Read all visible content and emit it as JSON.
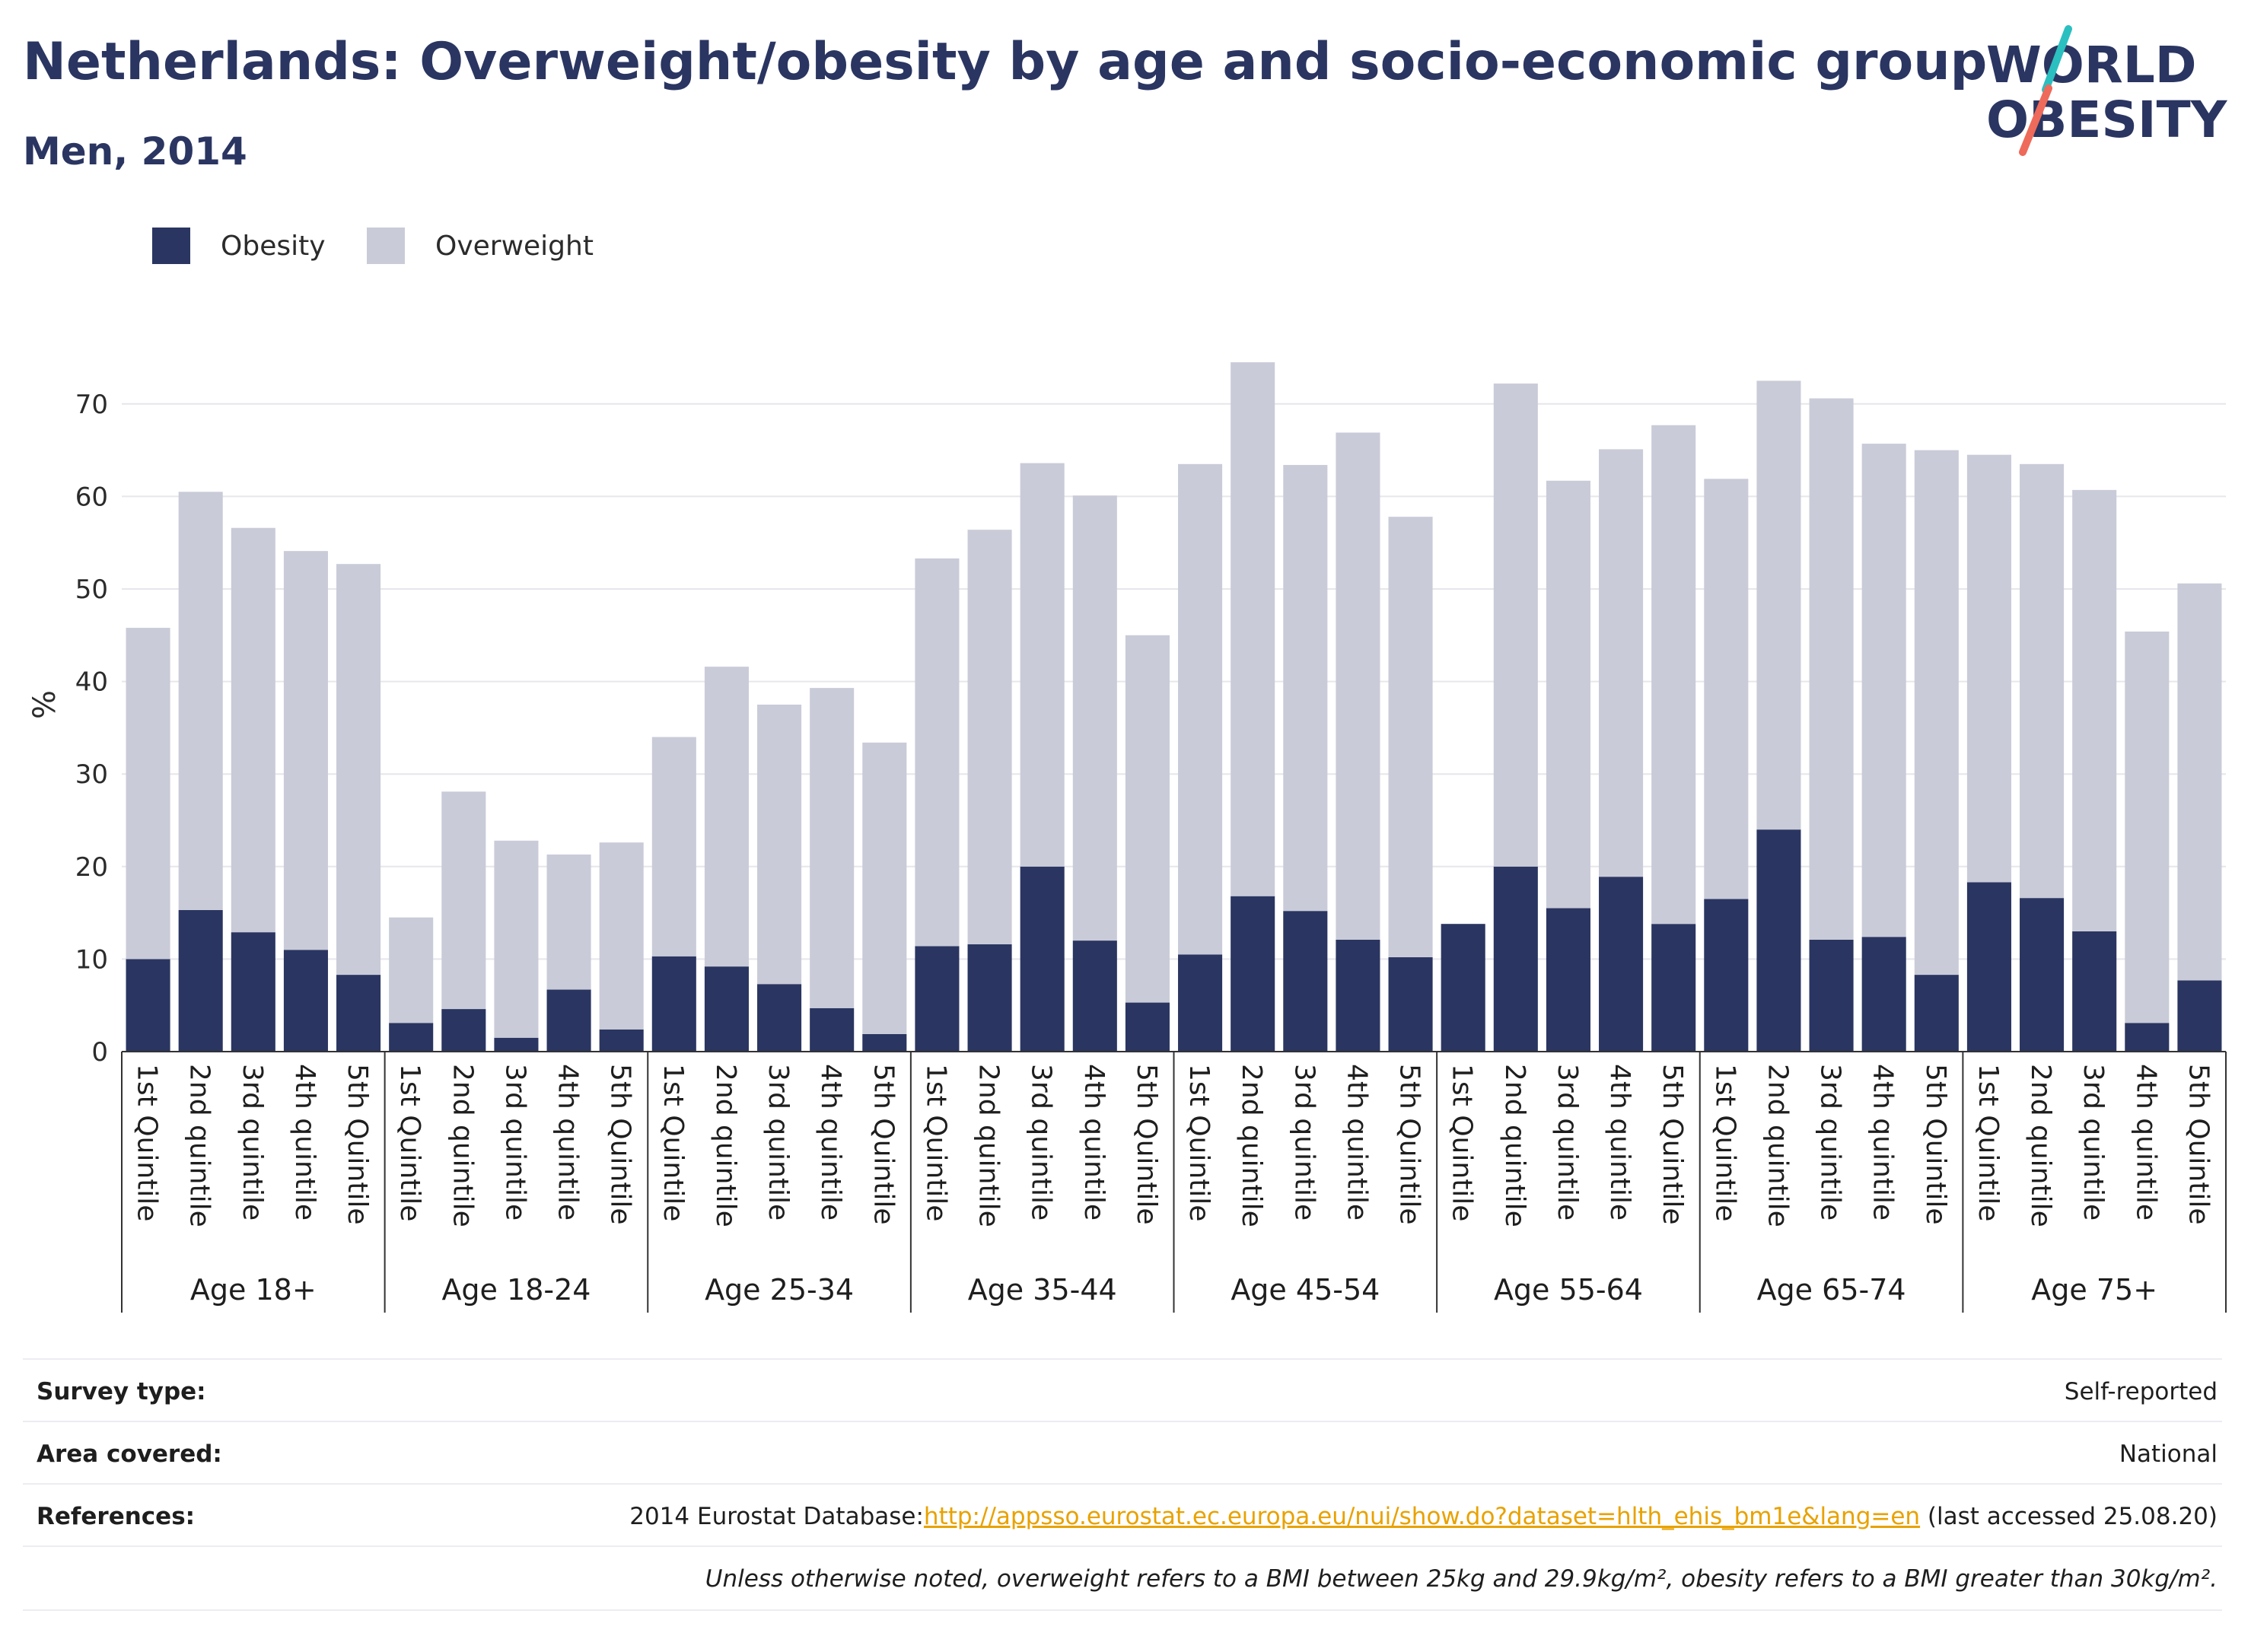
{
  "title": "Netherlands: Overweight/obesity by age and socio-economic group",
  "subtitle": "Men, 2014",
  "logo": {
    "line1": "WORLD",
    "line2": "OBESITY",
    "accent_teal": "#2bbfc0",
    "accent_coral": "#ee6a5a"
  },
  "colors": {
    "obesity": "#2a3561",
    "overweight": "#c9cbd8",
    "grid": "#e6e6ec",
    "axis": "#333333"
  },
  "chart_data": {
    "type": "bar",
    "stacked": true,
    "ylabel": "%",
    "ylim": [
      0,
      75
    ],
    "yticks": [
      0,
      10,
      20,
      30,
      40,
      50,
      60,
      70
    ],
    "grid": true,
    "legend_position": "top-left",
    "groups": [
      "Age 18+",
      "Age 18-24",
      "Age 25-34",
      "Age 35-44",
      "Age 45-54",
      "Age 55-64",
      "Age 65-74",
      "Age 75+"
    ],
    "categories": [
      "1st Quintile",
      "2nd quintile",
      "3rd quintile",
      "4th quintile",
      "5th Quintile"
    ],
    "series": [
      {
        "name": "Obesity",
        "values": [
          [
            10.0,
            15.3,
            12.9,
            11.0,
            8.3
          ],
          [
            3.1,
            4.6,
            1.5,
            6.7,
            2.4
          ],
          [
            10.3,
            9.2,
            7.3,
            4.7,
            1.9
          ],
          [
            11.4,
            11.6,
            20.0,
            12.0,
            5.3
          ],
          [
            10.5,
            16.8,
            15.2,
            12.1,
            10.2
          ],
          [
            13.8,
            20.0,
            15.5,
            18.9,
            13.8
          ],
          [
            16.5,
            24.0,
            12.1,
            12.4,
            8.3
          ],
          [
            18.3,
            16.6,
            13.0,
            3.1,
            7.7
          ]
        ]
      },
      {
        "name": "Overweight",
        "values": [
          [
            35.8,
            45.2,
            43.7,
            43.1,
            44.4
          ],
          [
            11.4,
            23.5,
            21.3,
            14.6,
            20.2
          ],
          [
            23.7,
            32.4,
            30.2,
            34.6,
            31.5
          ],
          [
            41.9,
            44.8,
            43.6,
            48.1,
            39.7
          ],
          [
            53.0,
            57.7,
            48.2,
            54.8,
            47.6
          ],
          [
            0.0,
            52.2,
            46.2,
            46.2,
            53.9
          ],
          [
            45.4,
            48.5,
            58.5,
            53.3,
            56.7
          ],
          [
            46.2,
            46.9,
            47.7,
            42.3,
            42.9
          ]
        ]
      }
    ]
  },
  "info": {
    "survey_type": {
      "label": "Survey type:",
      "value": "Self-reported"
    },
    "area_covered": {
      "label": "Area covered:",
      "value": "National"
    },
    "references": {
      "label": "References:",
      "prefix": "2014 Eurostat Database:",
      "link": "http://appsso.eurostat.ec.europa.eu/nui/show.do?dataset=hlth_ehis_bm1e&lang=en",
      "suffix": " (last accessed 25.08.20)"
    },
    "note": "Unless otherwise noted, overweight refers to a BMI between 25kg and 29.9kg/m², obesity refers to a BMI greater than 30kg/m²."
  }
}
